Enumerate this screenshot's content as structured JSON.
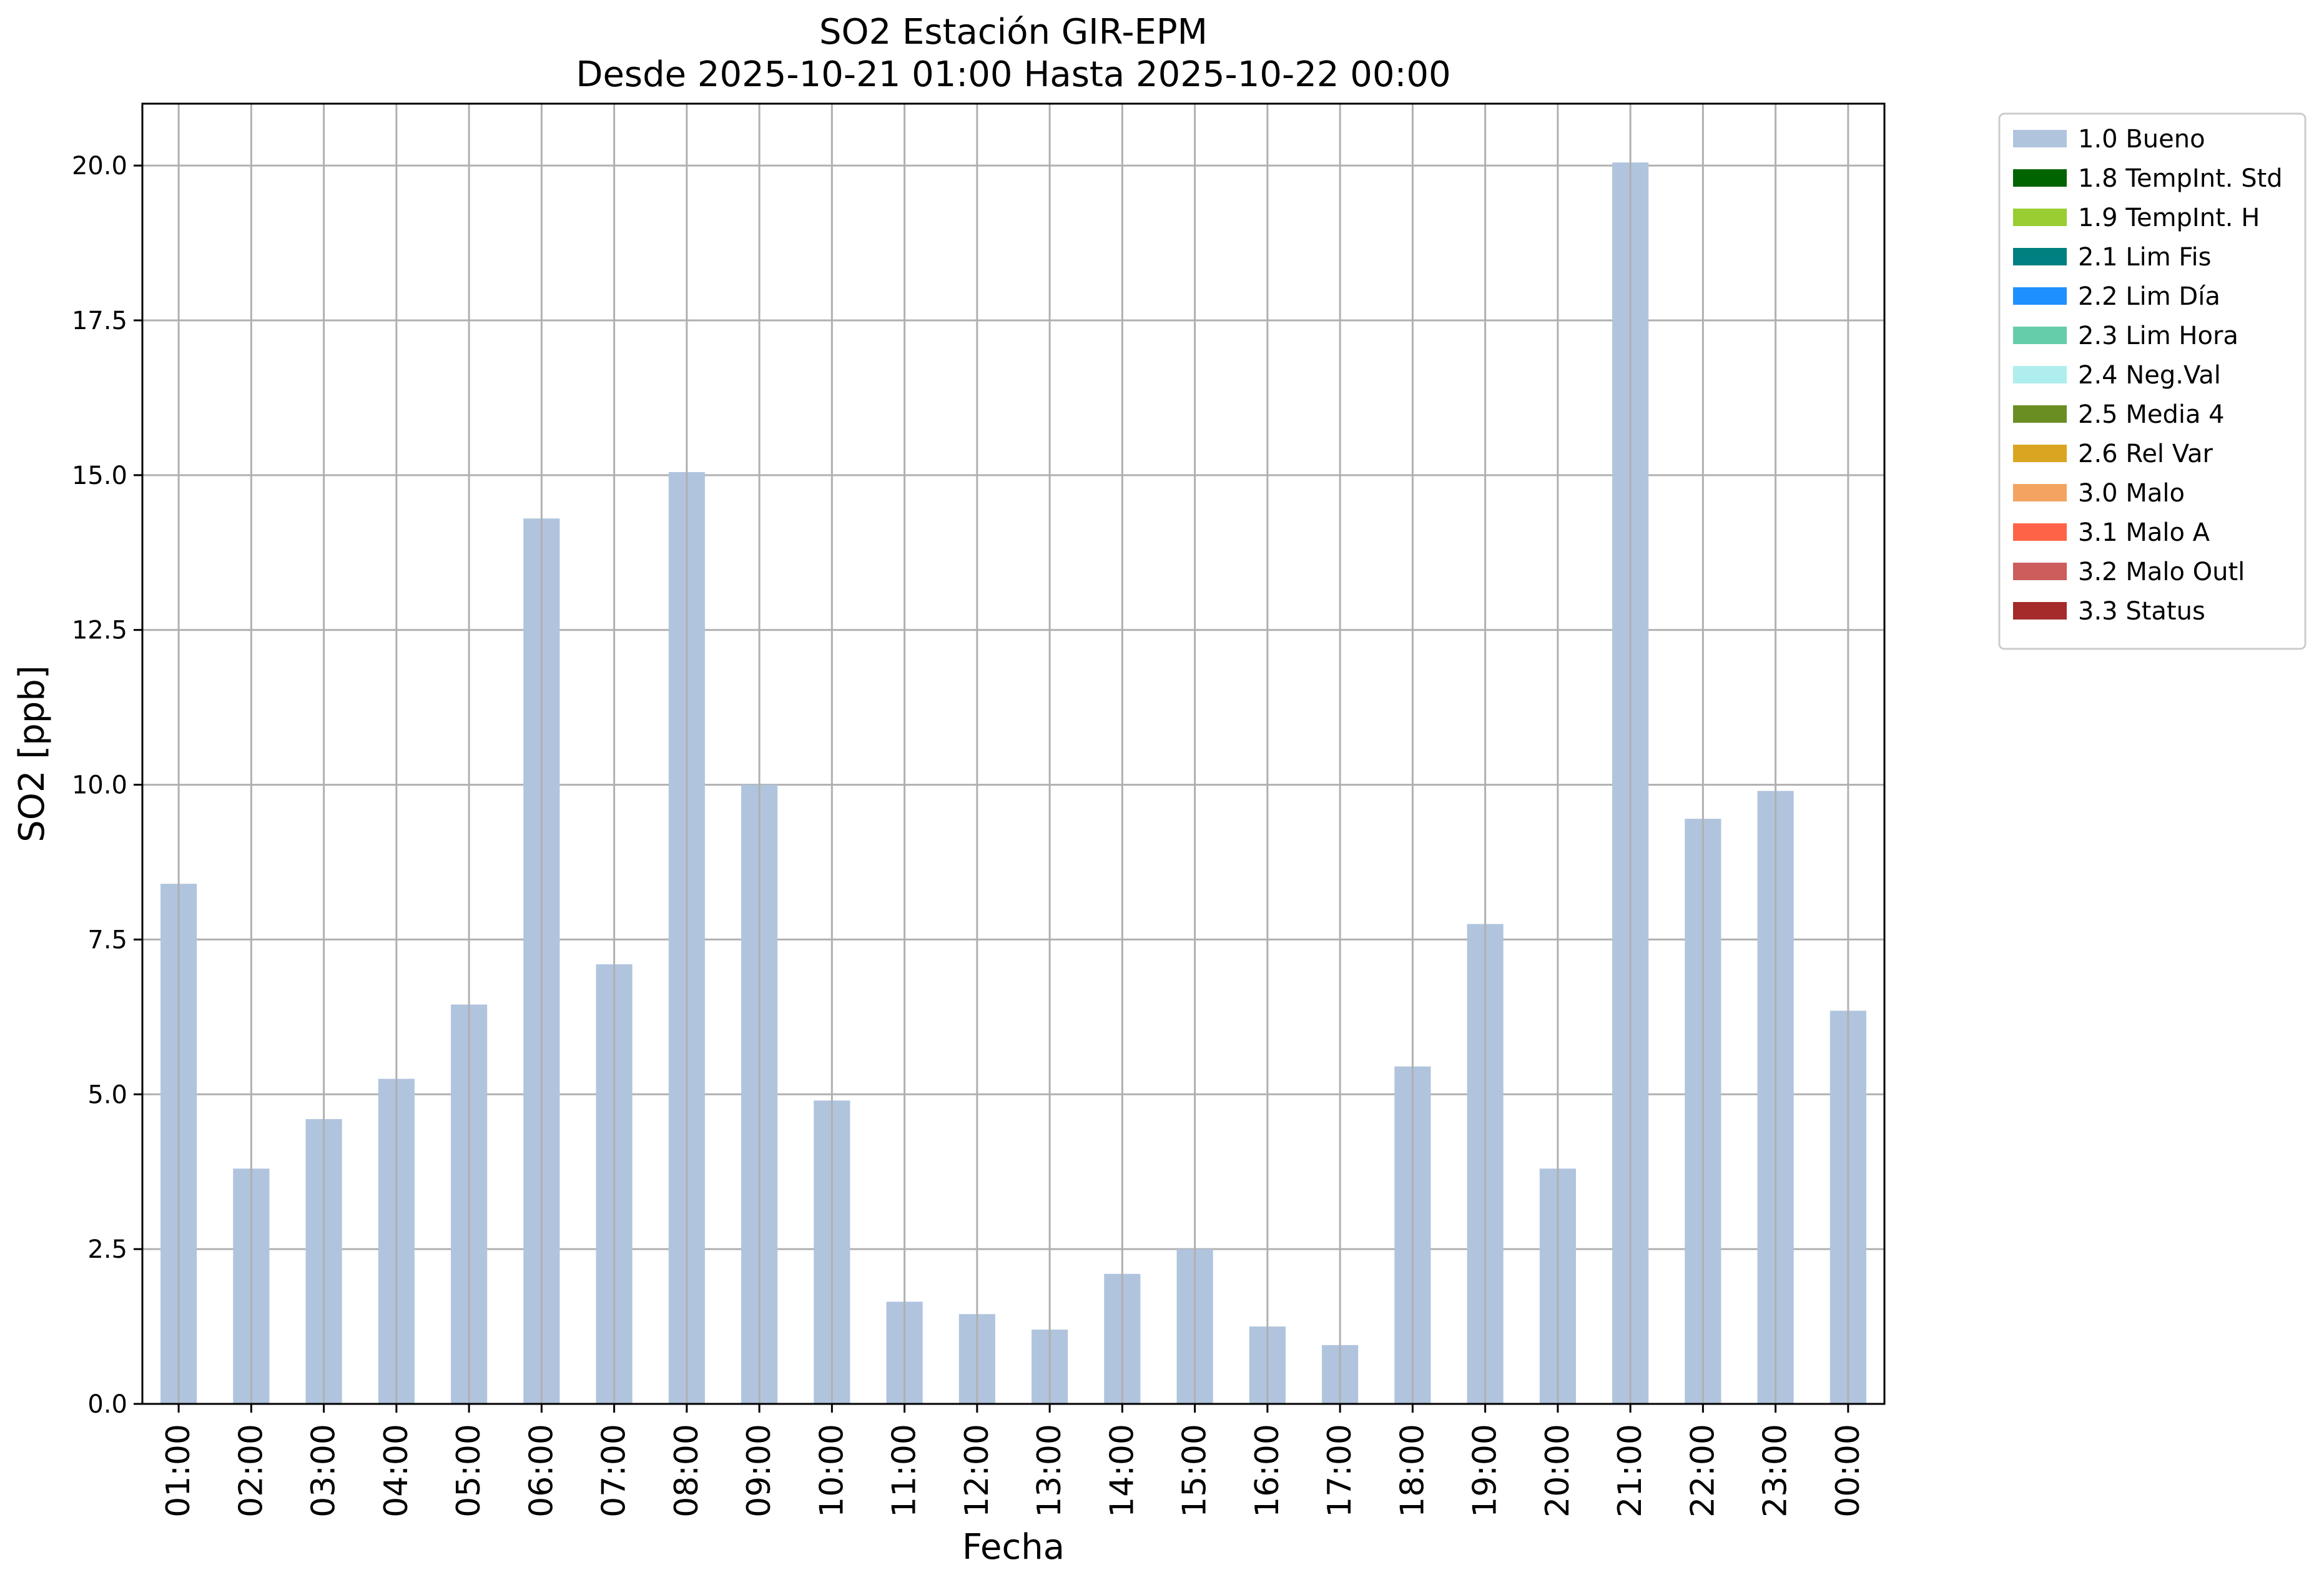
{
  "chart_data": {
    "type": "bar",
    "title": "SO2 Estación GIR-EPM",
    "subtitle": "Desde 2025-10-21 01:00 Hasta 2025-10-22 00:00",
    "xlabel": "Fecha",
    "ylabel": "SO2 [ppb]",
    "ylim": [
      0,
      21
    ],
    "yticks": [
      "0.0",
      "2.5",
      "5.0",
      "7.5",
      "10.0",
      "12.5",
      "15.0",
      "17.5",
      "20.0"
    ],
    "grid": true,
    "legend_position": "outside-top-right",
    "categories": [
      "01:00",
      "02:00",
      "03:00",
      "04:00",
      "05:00",
      "06:00",
      "07:00",
      "08:00",
      "09:00",
      "10:00",
      "11:00",
      "12:00",
      "13:00",
      "14:00",
      "15:00",
      "16:00",
      "17:00",
      "18:00",
      "19:00",
      "20:00",
      "21:00",
      "22:00",
      "23:00",
      "00:00"
    ],
    "series": [
      {
        "name": "1.0 Bueno",
        "color": "#b0c4de",
        "values": [
          8.4,
          3.8,
          4.6,
          5.25,
          6.45,
          14.3,
          7.1,
          15.05,
          10.0,
          4.9,
          1.65,
          1.45,
          1.2,
          2.1,
          2.5,
          1.25,
          0.95,
          5.45,
          7.75,
          3.8,
          20.05,
          9.45,
          9.9,
          6.35
        ]
      }
    ],
    "legend": [
      {
        "label": "1.0 Bueno",
        "color": "#b0c4de"
      },
      {
        "label": "1.8 TempInt. Std",
        "color": "#006400"
      },
      {
        "label": "1.9 TempInt. H",
        "color": "#9acd32"
      },
      {
        "label": "2.1 Lim Fis",
        "color": "#008080"
      },
      {
        "label": "2.2 Lim Día",
        "color": "#1e90ff"
      },
      {
        "label": "2.3 Lim Hora",
        "color": "#66cdaa"
      },
      {
        "label": "2.4 Neg.Val",
        "color": "#afeeee"
      },
      {
        "label": "2.5 Media 4",
        "color": "#6b8e23"
      },
      {
        "label": "2.6 Rel Var",
        "color": "#daa520"
      },
      {
        "label": "3.0 Malo",
        "color": "#f4a460"
      },
      {
        "label": "3.1 Malo A",
        "color": "#ff6347"
      },
      {
        "label": "3.2 Malo Outl",
        "color": "#cd5c5c"
      },
      {
        "label": "3.3 Status",
        "color": "#a52a2a"
      }
    ]
  }
}
